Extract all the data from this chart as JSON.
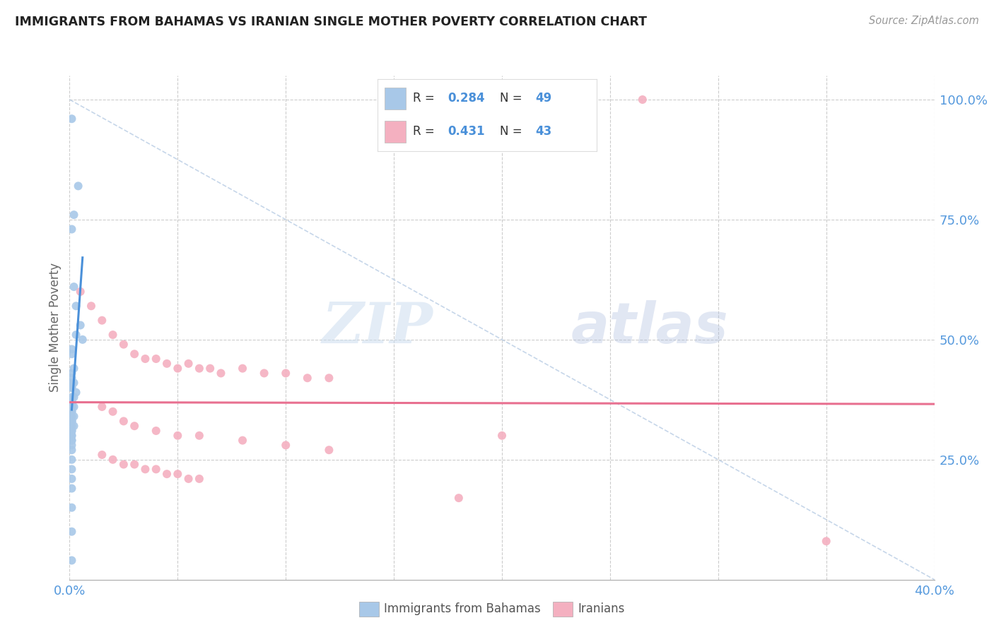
{
  "title": "IMMIGRANTS FROM BAHAMAS VS IRANIAN SINGLE MOTHER POVERTY CORRELATION CHART",
  "source": "Source: ZipAtlas.com",
  "ylabel": "Single Mother Poverty",
  "xlim": [
    0.0,
    0.4
  ],
  "ylim": [
    0.0,
    1.05
  ],
  "ytick_positions": [
    0.25,
    0.5,
    0.75,
    1.0
  ],
  "ytick_labels": [
    "25.0%",
    "50.0%",
    "75.0%",
    "100.0%"
  ],
  "color_blue": "#a8c8e8",
  "color_pink": "#f4b0c0",
  "trendline_blue_color": "#4a90d9",
  "trendline_pink_color": "#e87090",
  "trendline_dashed_color": "#b8cce4",
  "watermark_zip": "ZIP",
  "watermark_atlas": "atlas",
  "legend_r1_val": "0.284",
  "legend_n1_val": "49",
  "legend_r2_val": "0.431",
  "legend_n2_val": "43",
  "bahamas_x": [
    0.001,
    0.004,
    0.002,
    0.001,
    0.002,
    0.003,
    0.005,
    0.003,
    0.006,
    0.001,
    0.001,
    0.002,
    0.001,
    0.001,
    0.001,
    0.002,
    0.001,
    0.001,
    0.003,
    0.002,
    0.001,
    0.001,
    0.001,
    0.002,
    0.001,
    0.001,
    0.001,
    0.001,
    0.002,
    0.001,
    0.001,
    0.001,
    0.001,
    0.002,
    0.001,
    0.001,
    0.001,
    0.001,
    0.001,
    0.001,
    0.001,
    0.001,
    0.001,
    0.001,
    0.001,
    0.001,
    0.001,
    0.001,
    0.001
  ],
  "bahamas_y": [
    0.96,
    0.82,
    0.76,
    0.73,
    0.61,
    0.57,
    0.53,
    0.51,
    0.5,
    0.48,
    0.47,
    0.44,
    0.43,
    0.42,
    0.41,
    0.41,
    0.4,
    0.4,
    0.39,
    0.38,
    0.38,
    0.37,
    0.37,
    0.36,
    0.36,
    0.35,
    0.35,
    0.34,
    0.34,
    0.33,
    0.33,
    0.33,
    0.32,
    0.32,
    0.31,
    0.31,
    0.3,
    0.3,
    0.29,
    0.29,
    0.28,
    0.27,
    0.25,
    0.23,
    0.21,
    0.19,
    0.15,
    0.1,
    0.04
  ],
  "iranian_x": [
    0.265,
    0.005,
    0.01,
    0.015,
    0.02,
    0.025,
    0.03,
    0.035,
    0.04,
    0.045,
    0.05,
    0.055,
    0.06,
    0.065,
    0.07,
    0.08,
    0.09,
    0.1,
    0.11,
    0.12,
    0.015,
    0.02,
    0.025,
    0.03,
    0.04,
    0.05,
    0.06,
    0.08,
    0.1,
    0.12,
    0.015,
    0.02,
    0.025,
    0.03,
    0.035,
    0.04,
    0.045,
    0.05,
    0.055,
    0.06,
    0.2,
    0.18,
    0.35
  ],
  "iranian_y": [
    1.0,
    0.6,
    0.57,
    0.54,
    0.51,
    0.49,
    0.47,
    0.46,
    0.46,
    0.45,
    0.44,
    0.45,
    0.44,
    0.44,
    0.43,
    0.44,
    0.43,
    0.43,
    0.42,
    0.42,
    0.36,
    0.35,
    0.33,
    0.32,
    0.31,
    0.3,
    0.3,
    0.29,
    0.28,
    0.27,
    0.26,
    0.25,
    0.24,
    0.24,
    0.23,
    0.23,
    0.22,
    0.22,
    0.21,
    0.21,
    0.3,
    0.17,
    0.08
  ]
}
